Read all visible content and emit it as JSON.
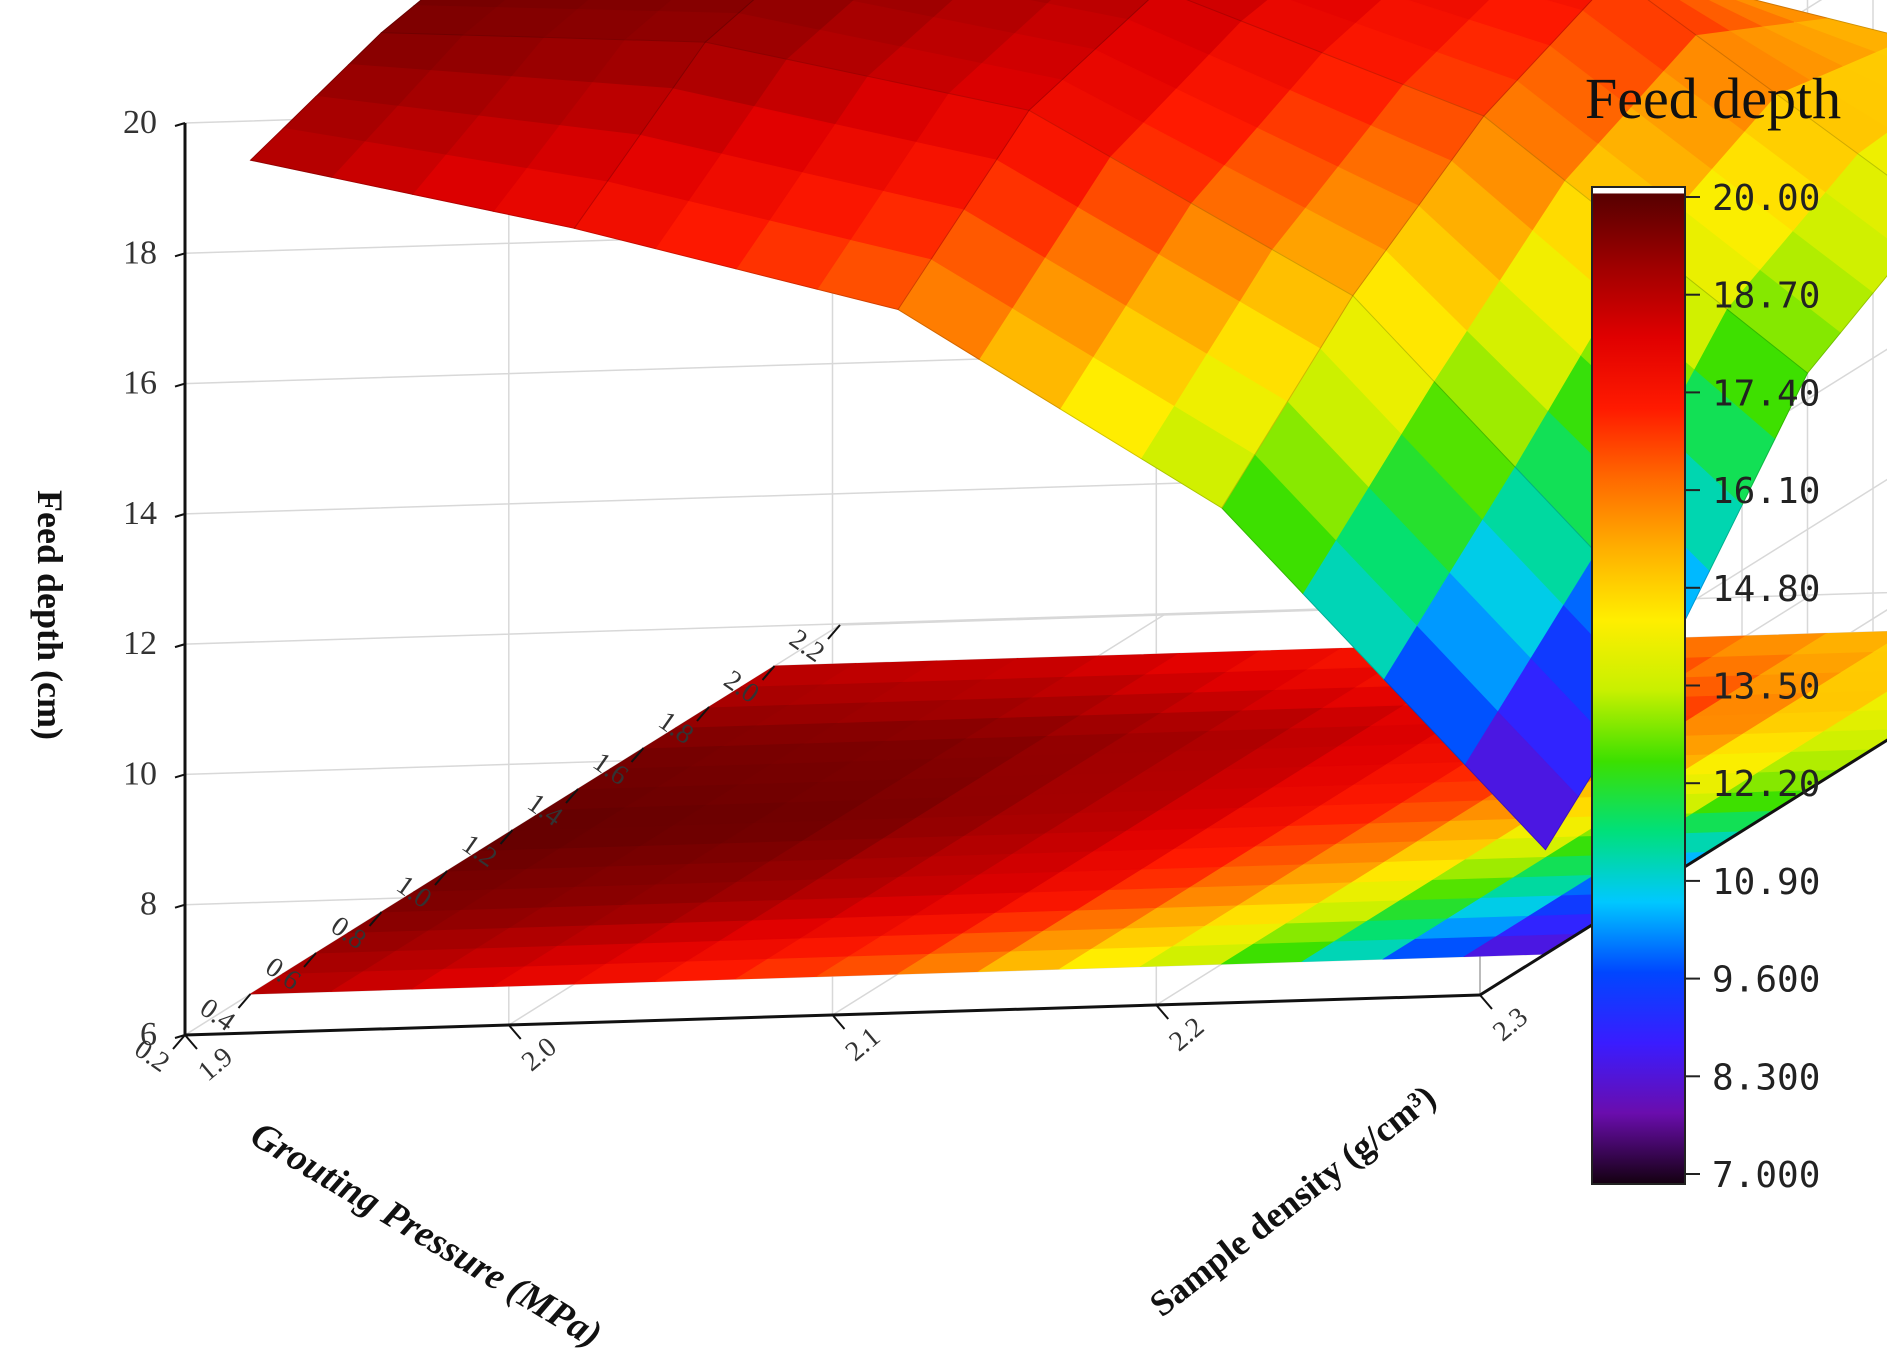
{
  "chart_data": {
    "type": "surface3d",
    "xlabel": "Grouting Pressure (MPa)",
    "ylabel": "Sample density (g/cm³)",
    "zlabel": "Feed depth (cm)",
    "x_ticks": [
      "0.2",
      "0.4",
      "0.6",
      "0.8",
      "1.0",
      "1.2",
      "1.4",
      "1.6",
      "1.8",
      "2.0",
      "2.2"
    ],
    "y_ticks": [
      "1.9",
      "2.0",
      "2.1",
      "2.2",
      "2.3"
    ],
    "z_ticks": [
      "6",
      "8",
      "10",
      "12",
      "14",
      "16",
      "18",
      "20"
    ],
    "xlim": [
      0.2,
      2.2
    ],
    "ylim": [
      1.9,
      2.3
    ],
    "zlim": [
      6,
      20
    ],
    "x": [
      0.4,
      0.8,
      1.2,
      1.6,
      2.0
    ],
    "y": [
      1.9,
      2.0,
      2.1,
      2.2,
      2.3
    ],
    "z": [
      [
        18.8,
        19.5,
        19.9,
        19.6,
        18.6
      ],
      [
        17.6,
        19.2,
        19.7,
        19.5,
        18.3
      ],
      [
        16.2,
        18.0,
        18.6,
        18.8,
        17.2
      ],
      [
        13.0,
        15.0,
        16.5,
        17.4,
        15.8
      ],
      [
        7.6,
        9.6,
        12.4,
        13.6,
        14.4
      ]
    ],
    "colorbar": {
      "title": "Feed depth",
      "ticks": [
        "20.00",
        "18.70",
        "17.40",
        "16.10",
        "14.80",
        "13.50",
        "12.20",
        "10.90",
        "9.600",
        "8.300",
        "7.000"
      ],
      "range": [
        7.0,
        20.0
      ],
      "colors": [
        "#140010",
        "#6a0dad",
        "#3a1cff",
        "#0046ff",
        "#00c8ff",
        "#00e07a",
        "#3ce000",
        "#c8f000",
        "#ffee00",
        "#ffb000",
        "#ff6a00",
        "#ff1a00",
        "#e00000",
        "#a00000",
        "#5a0000",
        "#ffffff"
      ]
    },
    "grid": true
  }
}
